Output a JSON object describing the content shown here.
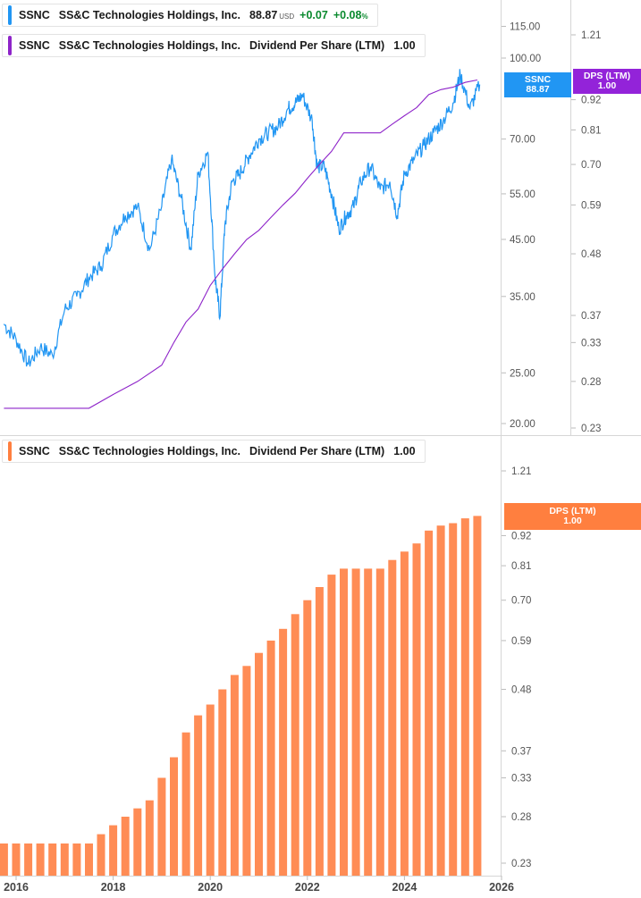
{
  "legends": {
    "price": {
      "ticker": "SSNC",
      "company": "SS&C Technologies Holdings, Inc.",
      "price": "88.87",
      "currency": "USD",
      "change": "+0.07",
      "change_pct": "+0.08",
      "pct_suffix": "%",
      "color": "#2196f3"
    },
    "dps_top": {
      "ticker": "SSNC",
      "company": "SS&C Technologies Holdings, Inc.",
      "metric": "Dividend Per Share (LTM)",
      "value": "1.00",
      "color": "#8e24c9"
    },
    "dps_bottom": {
      "ticker": "SSNC",
      "company": "SS&C Technologies Holdings, Inc.",
      "metric": "Dividend Per Share (LTM)",
      "value": "1.00",
      "color": "#ff7f3f"
    }
  },
  "tags": {
    "price": {
      "line1": "SSNC",
      "line2": "88.87",
      "color": "#2196f3"
    },
    "dps_top": {
      "line1": "DPS (LTM)",
      "line2": "1.00",
      "color": "#9323d9"
    },
    "dps_bottom": {
      "line1": "DPS (LTM)",
      "line2": "1.00",
      "color": "#ff7f3f"
    }
  },
  "chart_data": [
    {
      "type": "line",
      "scale": "log",
      "series": [
        {
          "name": "SSNC",
          "color": "#2196f3",
          "x": [
            2015.75,
            2016.0,
            2016.25,
            2016.5,
            2016.75,
            2017.0,
            2017.25,
            2017.5,
            2017.75,
            2018.0,
            2018.25,
            2018.5,
            2018.75,
            2019.0,
            2019.2,
            2019.4,
            2019.6,
            2019.75,
            2019.95,
            2020.1,
            2020.2,
            2020.3,
            2020.45,
            2020.6,
            2020.8,
            2021.0,
            2021.2,
            2021.4,
            2021.6,
            2021.75,
            2021.9,
            2022.1,
            2022.2,
            2022.35,
            2022.5,
            2022.65,
            2022.8,
            2022.95,
            2023.1,
            2023.3,
            2023.5,
            2023.7,
            2023.85,
            2024.0,
            2024.2,
            2024.4,
            2024.6,
            2024.8,
            2025.0,
            2025.15,
            2025.35,
            2025.55
          ],
          "values": [
            31,
            29,
            26,
            28,
            27,
            33,
            35,
            38,
            40,
            46,
            50,
            52,
            43,
            52,
            64,
            54,
            43,
            60,
            66,
            38,
            32,
            48,
            58,
            60,
            65,
            70,
            72,
            74,
            80,
            82,
            85,
            76,
            62,
            62,
            55,
            47,
            50,
            52,
            58,
            62,
            56,
            58,
            50,
            60,
            64,
            68,
            72,
            76,
            82,
            93,
            80,
            89
          ]
        },
        {
          "name": "Dividend Per Share (LTM)",
          "color": "#8e24c9",
          "x": [
            2015.75,
            2016.5,
            2017.5,
            2018.0,
            2018.5,
            2019.0,
            2019.25,
            2019.5,
            2019.75,
            2020.0,
            2020.25,
            2020.5,
            2020.75,
            2021.0,
            2021.25,
            2021.5,
            2021.75,
            2022.0,
            2022.25,
            2022.5,
            2022.75,
            2023.0,
            2023.25,
            2023.5,
            2023.75,
            2024.0,
            2024.25,
            2024.5,
            2024.75,
            2025.0,
            2025.25,
            2025.5
          ],
          "values": [
            0.25,
            0.25,
            0.25,
            0.265,
            0.28,
            0.3,
            0.33,
            0.36,
            0.38,
            0.42,
            0.45,
            0.48,
            0.51,
            0.53,
            0.56,
            0.59,
            0.62,
            0.66,
            0.7,
            0.74,
            0.8,
            0.8,
            0.8,
            0.8,
            0.83,
            0.86,
            0.89,
            0.94,
            0.96,
            0.97,
            0.99,
            1.0
          ]
        }
      ],
      "y_ticks": [
        "115.00",
        "100.00",
        "70.00",
        "55.00",
        "45.00",
        "35.00",
        "25.00",
        "20.00"
      ],
      "y2_ticks": [
        "1.21",
        "0.92",
        "0.81",
        "0.70",
        "0.59",
        "0.48",
        "0.37",
        "0.33",
        "0.28",
        "0.23"
      ]
    },
    {
      "type": "bar",
      "scale": "log",
      "series": [
        {
          "name": "Dividend Per Share (LTM)",
          "color": "#ff8c55",
          "x": [
            2015.75,
            2016.0,
            2016.25,
            2016.5,
            2016.75,
            2017.0,
            2017.25,
            2017.5,
            2017.75,
            2018.0,
            2018.25,
            2018.5,
            2018.75,
            2019.0,
            2019.25,
            2019.5,
            2019.75,
            2020.0,
            2020.25,
            2020.5,
            2020.75,
            2021.0,
            2021.25,
            2021.5,
            2021.75,
            2022.0,
            2022.25,
            2022.5,
            2022.75,
            2023.0,
            2023.25,
            2023.5,
            2023.75,
            2024.0,
            2024.25,
            2024.5,
            2024.75,
            2025.0,
            2025.25,
            2025.5
          ],
          "values": [
            0.25,
            0.25,
            0.25,
            0.25,
            0.25,
            0.25,
            0.25,
            0.25,
            0.26,
            0.27,
            0.28,
            0.29,
            0.3,
            0.33,
            0.36,
            0.4,
            0.43,
            0.45,
            0.48,
            0.51,
            0.53,
            0.56,
            0.59,
            0.62,
            0.66,
            0.7,
            0.74,
            0.78,
            0.8,
            0.8,
            0.8,
            0.8,
            0.83,
            0.86,
            0.89,
            0.94,
            0.96,
            0.97,
            0.99,
            1.0
          ]
        }
      ],
      "y_ticks": [
        "1.21",
        "0.92",
        "0.81",
        "0.70",
        "0.59",
        "0.48",
        "0.37",
        "0.33",
        "0.28",
        "0.23"
      ],
      "x_ticks": [
        "2016",
        "2018",
        "2020",
        "2022",
        "2024",
        "2026"
      ]
    }
  ]
}
